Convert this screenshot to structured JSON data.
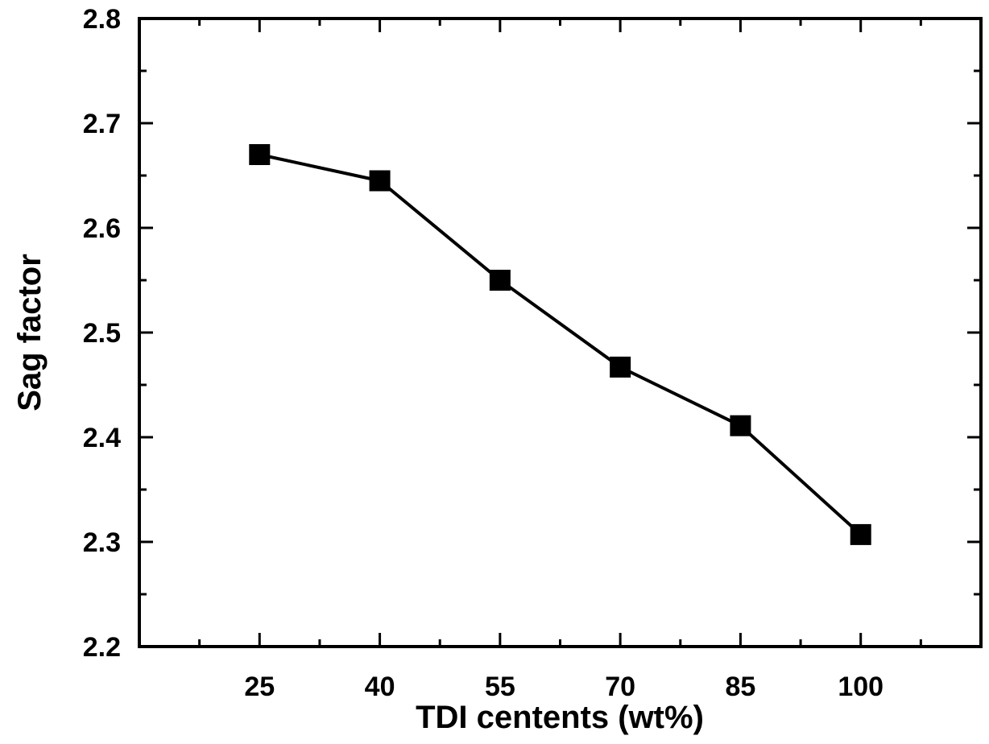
{
  "chart_data": {
    "type": "line",
    "title": "",
    "xlabel": "TDI centents (wt%)",
    "ylabel": "Sag factor",
    "x": [
      25,
      40,
      55,
      70,
      85,
      100
    ],
    "series": [
      {
        "name": "",
        "values": [
          2.67,
          2.645,
          2.55,
          2.467,
          2.411,
          2.307
        ]
      }
    ],
    "xlim": [
      10,
      115
    ],
    "ylim": [
      2.2,
      2.8
    ],
    "xticks": [
      25,
      40,
      55,
      70,
      85,
      100
    ],
    "xtick_labels": [
      "25",
      "40",
      "55",
      "70",
      "85",
      "100"
    ],
    "yticks": [
      2.2,
      2.3,
      2.4,
      2.5,
      2.6,
      2.7,
      2.8
    ],
    "ytick_labels": [
      "2.2",
      "2.3",
      "2.4",
      "2.5",
      "2.6",
      "2.7",
      "2.8"
    ],
    "marker": "square",
    "line_color": "#000000",
    "marker_color": "#000000",
    "grid": false,
    "legend": "none"
  }
}
